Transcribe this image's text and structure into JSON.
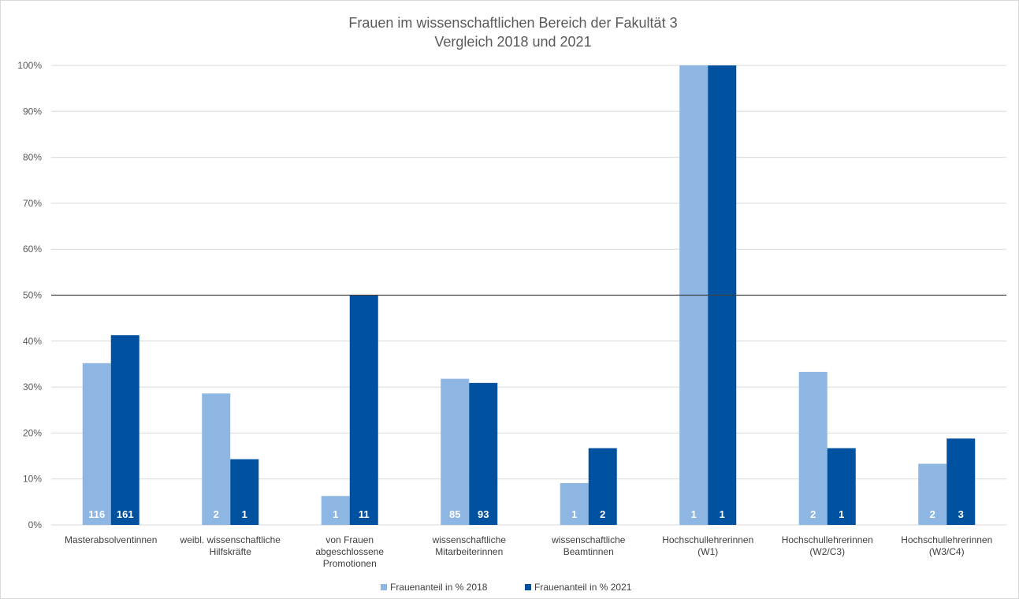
{
  "chart_data": {
    "type": "bar",
    "title": [
      "Frauen im wissenschaftlichen Bereich der Fakultät 3",
      "Vergleich 2018 und 2021"
    ],
    "categories": [
      [
        "Masterabsolventinnen"
      ],
      [
        "weibl. wissenschaftliche",
        "Hilfskräfte"
      ],
      [
        "von Frauen",
        "abgeschlossene",
        "Promotionen"
      ],
      [
        "wissenschaftliche",
        "Mitarbeiterinnen"
      ],
      [
        "wissenschaftliche",
        "Beamtinnen"
      ],
      [
        "Hochschullehrerinnen",
        "(W1)"
      ],
      [
        "Hochschullehrerinnen",
        "(W2/C3)"
      ],
      [
        "Hochschullehrerinnen",
        "(W3/C4)"
      ]
    ],
    "series": [
      {
        "name": "Frauenanteil in % 2018",
        "color": "#8db6e3",
        "values": [
          35.2,
          28.6,
          6.3,
          31.8,
          9.1,
          100,
          33.3,
          13.3
        ],
        "labels": [
          "116",
          "2",
          "1",
          "85",
          "1",
          "1",
          "2",
          "2"
        ]
      },
      {
        "name": "Frauenanteil in % 2021",
        "color": "#0052a0",
        "values": [
          41.3,
          14.3,
          50.0,
          30.9,
          16.7,
          100,
          16.7,
          18.8
        ],
        "labels": [
          "161",
          "1",
          "11",
          "93",
          "2",
          "1",
          "1",
          "3"
        ]
      }
    ],
    "ylim": [
      0,
      100
    ],
    "yticks": [
      "0%",
      "10%",
      "20%",
      "30%",
      "40%",
      "50%",
      "60%",
      "70%",
      "80%",
      "90%",
      "100%"
    ],
    "reference_line": 50,
    "grid": true,
    "legend": "bottom"
  }
}
